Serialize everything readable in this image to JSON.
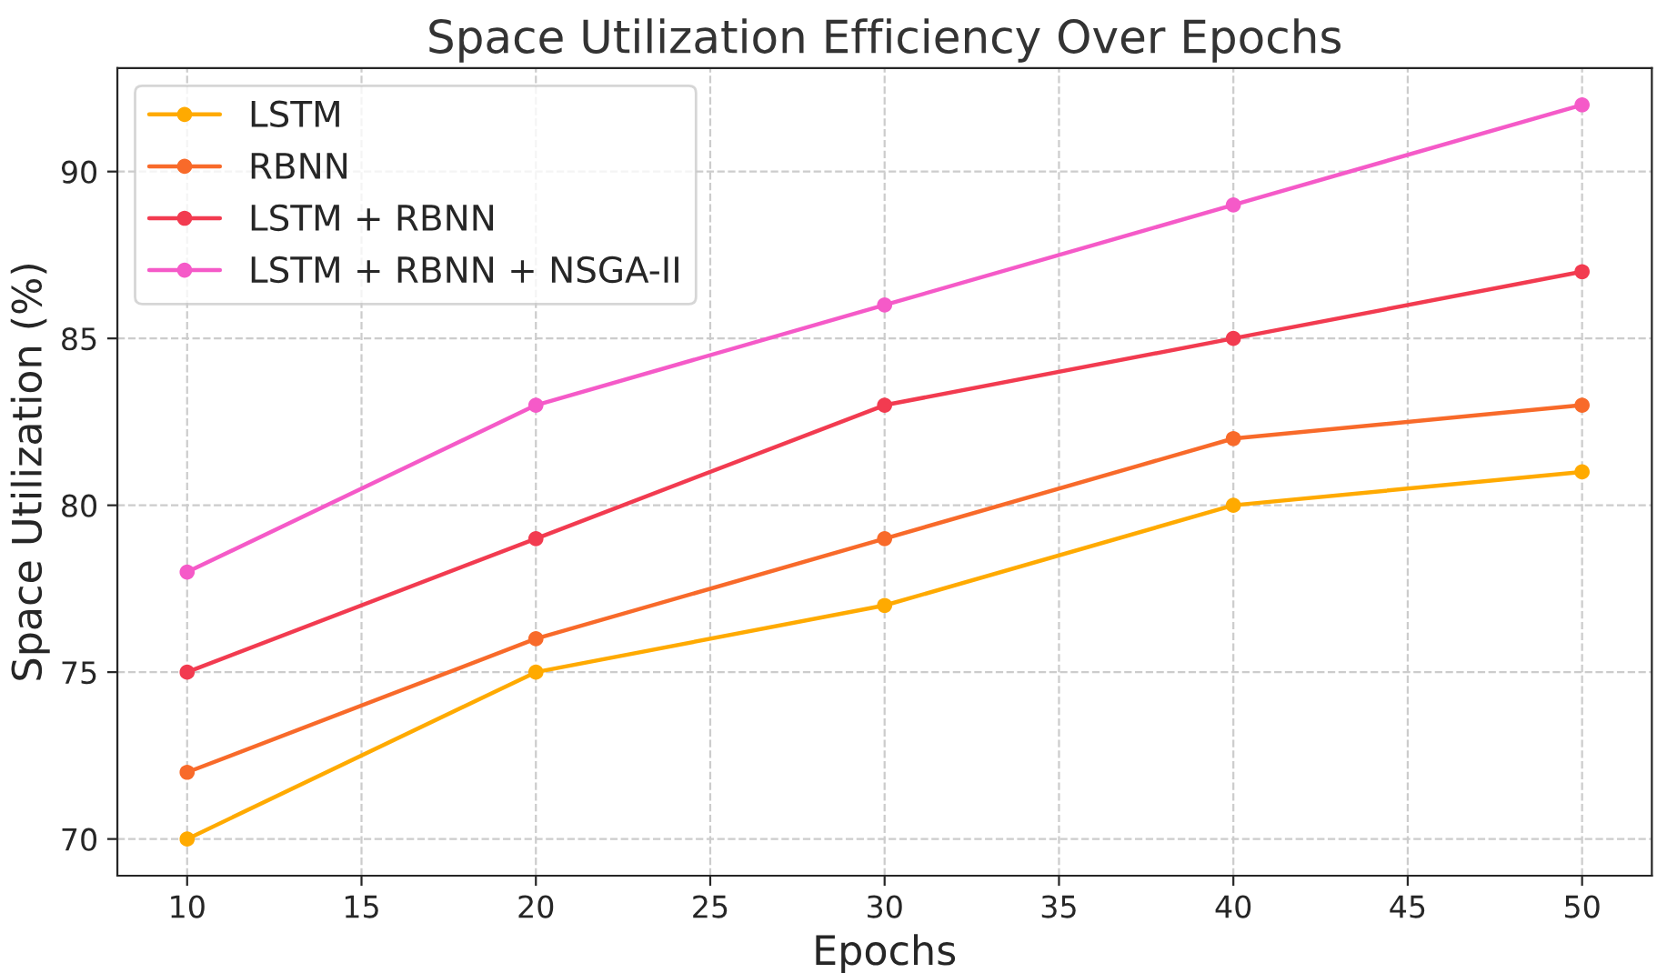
{
  "chart_data": {
    "type": "line",
    "title": "Space Utilization Efficiency Over Epochs",
    "xlabel": "Epochs",
    "ylabel": "Space Utilization (%)",
    "x": [
      10,
      20,
      30,
      40,
      50
    ],
    "series": [
      {
        "name": "LSTM",
        "color": "#ffaa00",
        "values": [
          70,
          75,
          77,
          80,
          81
        ]
      },
      {
        "name": "RBNN",
        "color": "#f86a2a",
        "values": [
          72,
          76,
          79,
          82,
          83
        ]
      },
      {
        "name": "LSTM + RBNN",
        "color": "#f23b50",
        "values": [
          75,
          79,
          83,
          85,
          87
        ]
      },
      {
        "name": "LSTM + RBNN + NSGA-II",
        "color": "#f55ac8",
        "values": [
          78,
          83,
          86,
          89,
          92
        ]
      }
    ],
    "xlim": [
      8,
      52
    ],
    "xticks": [
      10,
      15,
      20,
      25,
      30,
      35,
      40,
      45,
      50
    ],
    "ylim": [
      68.9,
      93.1
    ],
    "yticks": [
      70,
      75,
      80,
      85,
      90
    ],
    "grid": true,
    "legend": "top left",
    "marker": "circle",
    "line_style": "solid"
  }
}
